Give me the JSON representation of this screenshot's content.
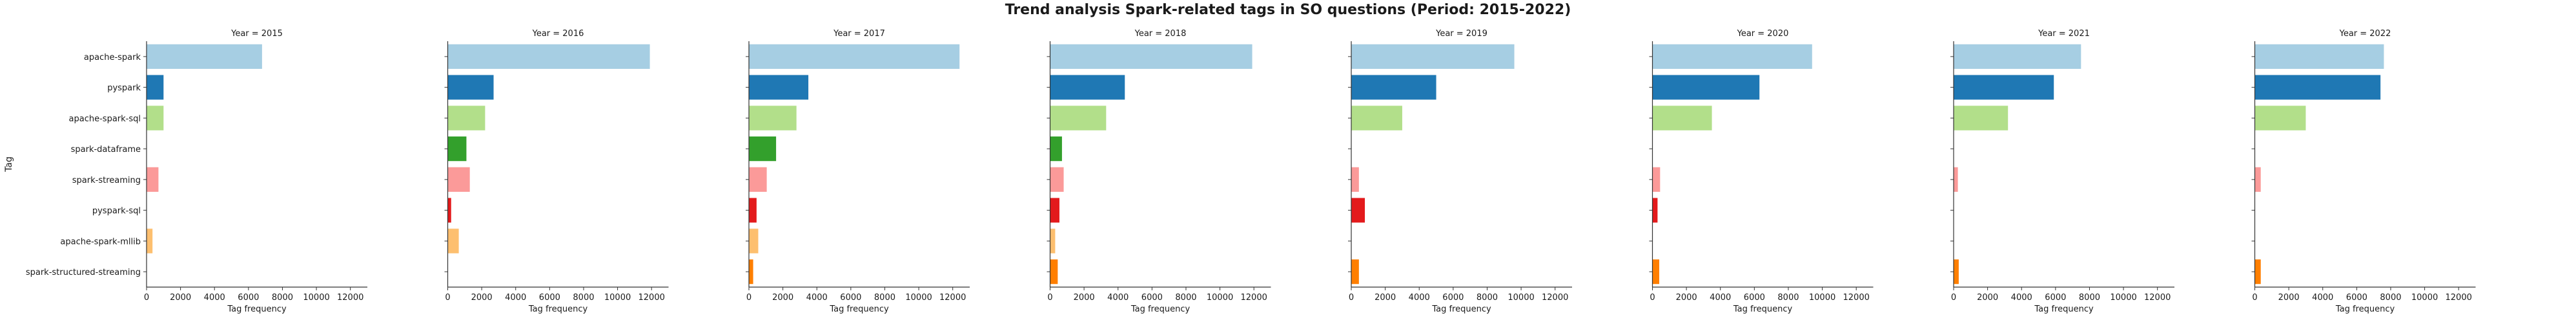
{
  "chart_data": {
    "type": "bar",
    "orientation": "horizontal",
    "title": "Trend analysis Spark-related tags in SO questions (Period: 2015-2022)",
    "ylabel": "Tag",
    "xlabel": "Tag frequency",
    "xlim": [
      0,
      13000
    ],
    "xticks": [
      0,
      2000,
      4000,
      6000,
      8000,
      10000,
      12000
    ],
    "categories": [
      "apache-spark",
      "pyspark",
      "apache-spark-sql",
      "spark-dataframe",
      "spark-streaming",
      "pyspark-sql",
      "apache-spark-mllib",
      "spark-structured-streaming"
    ],
    "colors": [
      "#a6cee3",
      "#1f78b4",
      "#b2df8a",
      "#33a02c",
      "#fb9a99",
      "#e31a1c",
      "#fdbf6f",
      "#ff7f00"
    ],
    "panels": [
      {
        "title": "Year = 2015",
        "values": [
          6800,
          1000,
          1000,
          0,
          700,
          0,
          350,
          0
        ]
      },
      {
        "title": "Year = 2016",
        "values": [
          11900,
          2700,
          2200,
          1100,
          1300,
          200,
          650,
          0
        ]
      },
      {
        "title": "Year = 2017",
        "values": [
          12400,
          3500,
          2800,
          1600,
          1050,
          450,
          550,
          250
        ]
      },
      {
        "title": "Year = 2018",
        "values": [
          11900,
          4400,
          3300,
          700,
          800,
          550,
          300,
          450
        ]
      },
      {
        "title": "Year = 2019",
        "values": [
          9600,
          5000,
          3000,
          0,
          450,
          800,
          0,
          450
        ]
      },
      {
        "title": "Year = 2020",
        "values": [
          9400,
          6300,
          3500,
          0,
          450,
          300,
          0,
          400
        ]
      },
      {
        "title": "Year = 2021",
        "values": [
          7500,
          5900,
          3200,
          0,
          250,
          0,
          0,
          300
        ]
      },
      {
        "title": "Year = 2022",
        "values": [
          7600,
          7400,
          3000,
          0,
          350,
          0,
          0,
          350
        ]
      }
    ]
  }
}
